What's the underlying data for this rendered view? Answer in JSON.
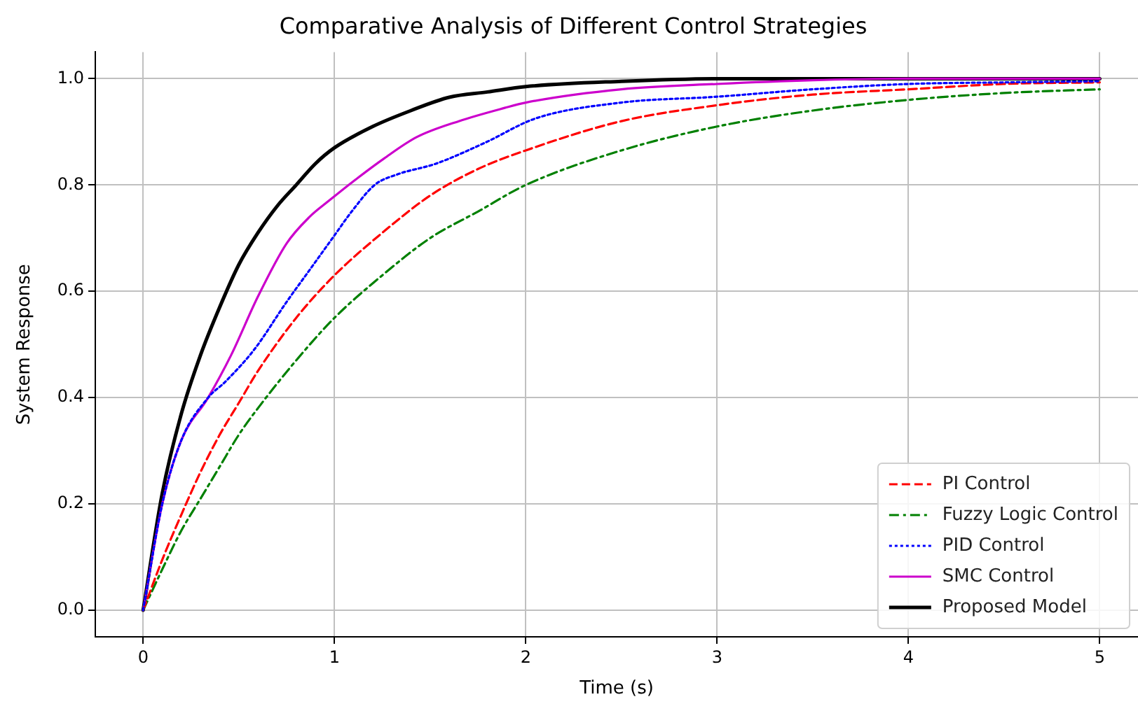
{
  "chart_data": {
    "type": "line",
    "title": "Comparative Analysis of Different Control Strategies",
    "xlabel": "Time (s)",
    "ylabel": "System Response",
    "xlim": [
      -0.25,
      5.2
    ],
    "xticks": [
      0,
      1,
      2,
      3,
      4,
      5
    ],
    "ylim": [
      -0.05,
      1.05
    ],
    "yticks": [
      {
        "value": 0,
        "label": "0.0"
      },
      {
        "value": 0.2,
        "label": "0.2"
      },
      {
        "value": 0.4,
        "label": "0.4"
      },
      {
        "value": 0.6,
        "label": "0.6"
      },
      {
        "value": 0.8,
        "label": "0.8"
      },
      {
        "value": 1,
        "label": "1.0"
      }
    ],
    "grid": true,
    "legend": "bottom right",
    "marker": "none",
    "series": [
      {
        "name": "PI Control",
        "color": "#ff0000",
        "line_style": "dashed",
        "x": [
          0,
          0.1,
          0.2,
          0.3,
          0.4,
          0.5,
          0.6,
          0.8,
          1,
          1.25,
          1.5,
          1.75,
          2,
          2.5,
          3,
          3.5,
          4,
          4.5,
          5
        ],
        "values": [
          0,
          0.095,
          0.18,
          0.26,
          0.33,
          0.39,
          0.45,
          0.55,
          0.63,
          0.71,
          0.78,
          0.83,
          0.865,
          0.92,
          0.95,
          0.97,
          0.98,
          0.99,
          0.993
        ]
      },
      {
        "name": "Fuzzy Logic Control",
        "color": "#008000",
        "line_style": "dashdot",
        "x": [
          0,
          0.1,
          0.2,
          0.3,
          0.4,
          0.5,
          0.6,
          0.8,
          1,
          1.25,
          1.5,
          1.75,
          2,
          2.5,
          3,
          3.5,
          4,
          4.5,
          5
        ],
        "values": [
          0,
          0.077,
          0.15,
          0.21,
          0.27,
          0.33,
          0.38,
          0.47,
          0.55,
          0.63,
          0.7,
          0.75,
          0.8,
          0.865,
          0.91,
          0.94,
          0.96,
          0.973,
          0.98
        ]
      },
      {
        "name": "PID Control",
        "color": "#0000ff",
        "line_style": "dotted",
        "x": [
          0,
          0.1,
          0.2,
          0.34,
          0.43,
          0.58,
          0.75,
          0.87,
          0.99,
          1.09,
          1.21,
          1.33,
          1.53,
          1.79,
          2.05,
          2.5,
          3,
          3.5,
          4,
          4.5,
          5
        ],
        "values": [
          0,
          0.2,
          0.32,
          0.4,
          0.43,
          0.49,
          0.58,
          0.64,
          0.7,
          0.75,
          0.8,
          0.82,
          0.84,
          0.88,
          0.925,
          0.955,
          0.966,
          0.98,
          0.99,
          0.993,
          0.995
        ]
      },
      {
        "name": "SMC Control",
        "color": "#cc00cc",
        "line_style": "solid",
        "x": [
          0,
          0.1,
          0.2,
          0.34,
          0.46,
          0.6,
          0.75,
          0.87,
          0.97,
          1.11,
          1.26,
          1.43,
          1.65,
          1.89,
          2,
          2.5,
          3,
          3.5,
          4,
          5
        ],
        "values": [
          0,
          0.2,
          0.32,
          0.4,
          0.48,
          0.59,
          0.69,
          0.74,
          0.77,
          0.81,
          0.85,
          0.89,
          0.92,
          0.945,
          0.955,
          0.98,
          0.99,
          0.997,
          1.0,
          1.0
        ]
      },
      {
        "name": "Proposed Model",
        "color": "#000000",
        "line_style": "solid",
        "x": [
          0,
          0.1,
          0.2,
          0.3,
          0.4,
          0.5,
          0.6,
          0.7,
          0.8,
          0.9,
          1,
          1.2,
          1.4,
          1.6,
          1.8,
          2,
          2.5,
          3,
          4,
          5
        ],
        "values": [
          0,
          0.22,
          0.37,
          0.48,
          0.57,
          0.65,
          0.71,
          0.76,
          0.8,
          0.84,
          0.87,
          0.91,
          0.94,
          0.965,
          0.975,
          0.985,
          0.995,
          1.0,
          1.0,
          1.0
        ]
      }
    ]
  }
}
